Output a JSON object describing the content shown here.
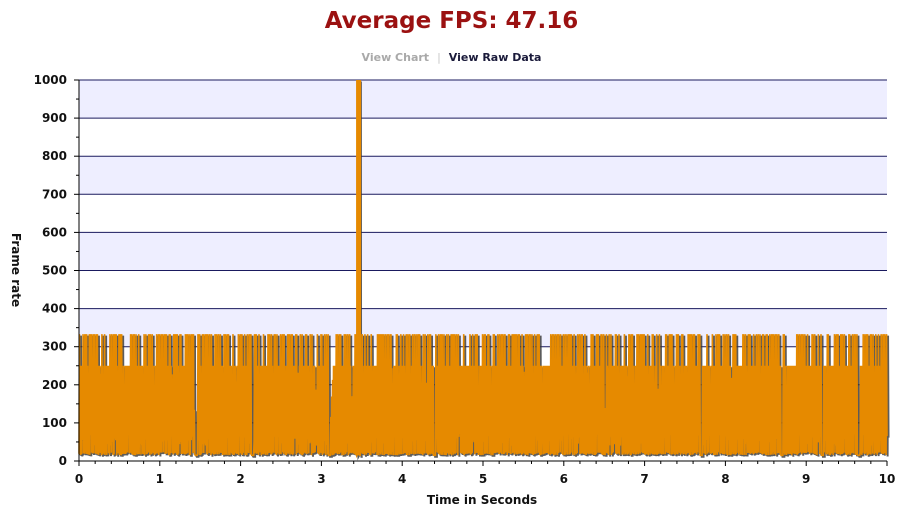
{
  "header": {
    "title": "Average FPS: 47.16",
    "view_chart_label": "View Chart",
    "view_raw_label": "View Raw Data"
  },
  "colors": {
    "series": "#e68a00",
    "series_shadow": "#333333",
    "band": "#eeeeff",
    "gridline": "#1a1a5e",
    "title": "#9b1111"
  },
  "chart_data": {
    "type": "line",
    "xlabel": "Time in Seconds",
    "ylabel": "Frame rate",
    "xlim": [
      0,
      10
    ],
    "ylim": [
      0,
      1000
    ],
    "x_ticks": [
      0,
      1,
      2,
      3,
      4,
      5,
      6,
      7,
      8,
      9,
      10
    ],
    "y_ticks": [
      0,
      100,
      200,
      300,
      400,
      500,
      600,
      700,
      800,
      900,
      1000
    ],
    "grid": true,
    "series": [
      {
        "name": "",
        "pattern": "rapid oscillation between ~15 and ~250-333 FPS across the whole 0-10 s window",
        "baseline_fps": 15,
        "common_high_fps": 250,
        "peak_high_fps": 333,
        "spike": {
          "x": 3.46,
          "y": 1000
        },
        "values_sample": [
          [
            0.0,
            333
          ],
          [
            0.1,
            15
          ],
          [
            0.2,
            250
          ],
          [
            0.3,
            333
          ],
          [
            0.4,
            15
          ],
          [
            0.5,
            250
          ],
          [
            0.6,
            333
          ],
          [
            0.7,
            15
          ],
          [
            0.8,
            250
          ],
          [
            0.9,
            333
          ],
          [
            1.0,
            15
          ],
          [
            1.1,
            250
          ],
          [
            1.2,
            333
          ],
          [
            1.3,
            15
          ],
          [
            1.45,
            15
          ],
          [
            1.5,
            250
          ],
          [
            1.6,
            333
          ],
          [
            1.7,
            15
          ],
          [
            1.8,
            250
          ],
          [
            1.9,
            333
          ],
          [
            2.0,
            15
          ],
          [
            2.15,
            15
          ],
          [
            2.2,
            250
          ],
          [
            2.3,
            333
          ],
          [
            2.4,
            15
          ],
          [
            2.5,
            250
          ],
          [
            2.6,
            333
          ],
          [
            2.7,
            15
          ],
          [
            2.8,
            250
          ],
          [
            2.9,
            333
          ],
          [
            3.0,
            15
          ],
          [
            3.1,
            15
          ],
          [
            3.2,
            250
          ],
          [
            3.3,
            15
          ],
          [
            3.4,
            250
          ],
          [
            3.46,
            1000
          ],
          [
            3.5,
            333
          ],
          [
            3.6,
            15
          ],
          [
            3.7,
            250
          ],
          [
            3.8,
            333
          ],
          [
            3.9,
            15
          ],
          [
            4.0,
            250
          ],
          [
            4.1,
            333
          ],
          [
            4.2,
            15
          ],
          [
            4.4,
            15
          ],
          [
            4.5,
            250
          ],
          [
            4.6,
            333
          ],
          [
            4.7,
            15
          ],
          [
            4.8,
            250
          ],
          [
            4.9,
            333
          ],
          [
            5.0,
            15
          ],
          [
            5.1,
            250
          ],
          [
            5.2,
            333
          ],
          [
            5.3,
            15
          ],
          [
            5.4,
            250
          ],
          [
            5.5,
            333
          ],
          [
            5.6,
            15
          ],
          [
            5.7,
            250
          ],
          [
            5.8,
            333
          ],
          [
            5.9,
            15
          ],
          [
            6.0,
            250
          ],
          [
            6.1,
            333
          ],
          [
            6.2,
            15
          ],
          [
            6.3,
            250
          ],
          [
            6.4,
            333
          ],
          [
            6.5,
            15
          ],
          [
            6.6,
            250
          ],
          [
            6.7,
            333
          ],
          [
            6.8,
            15
          ],
          [
            6.9,
            250
          ],
          [
            7.0,
            333
          ],
          [
            7.1,
            15
          ],
          [
            7.2,
            250
          ],
          [
            7.3,
            333
          ],
          [
            7.4,
            15
          ],
          [
            7.5,
            250
          ],
          [
            7.6,
            333
          ],
          [
            7.7,
            15
          ],
          [
            7.8,
            250
          ],
          [
            7.9,
            333
          ],
          [
            8.0,
            15
          ],
          [
            8.1,
            250
          ],
          [
            8.2,
            333
          ],
          [
            8.3,
            15
          ],
          [
            8.4,
            250
          ],
          [
            8.5,
            333
          ],
          [
            8.6,
            15
          ],
          [
            8.7,
            15
          ],
          [
            8.8,
            250
          ],
          [
            8.9,
            333
          ],
          [
            9.0,
            15
          ],
          [
            9.1,
            250
          ],
          [
            9.2,
            15
          ],
          [
            9.3,
            333
          ],
          [
            9.4,
            15
          ],
          [
            9.5,
            250
          ],
          [
            9.6,
            333
          ],
          [
            9.7,
            15
          ],
          [
            9.8,
            250
          ],
          [
            9.9,
            333
          ],
          [
            10.0,
            250
          ]
        ]
      }
    ]
  }
}
